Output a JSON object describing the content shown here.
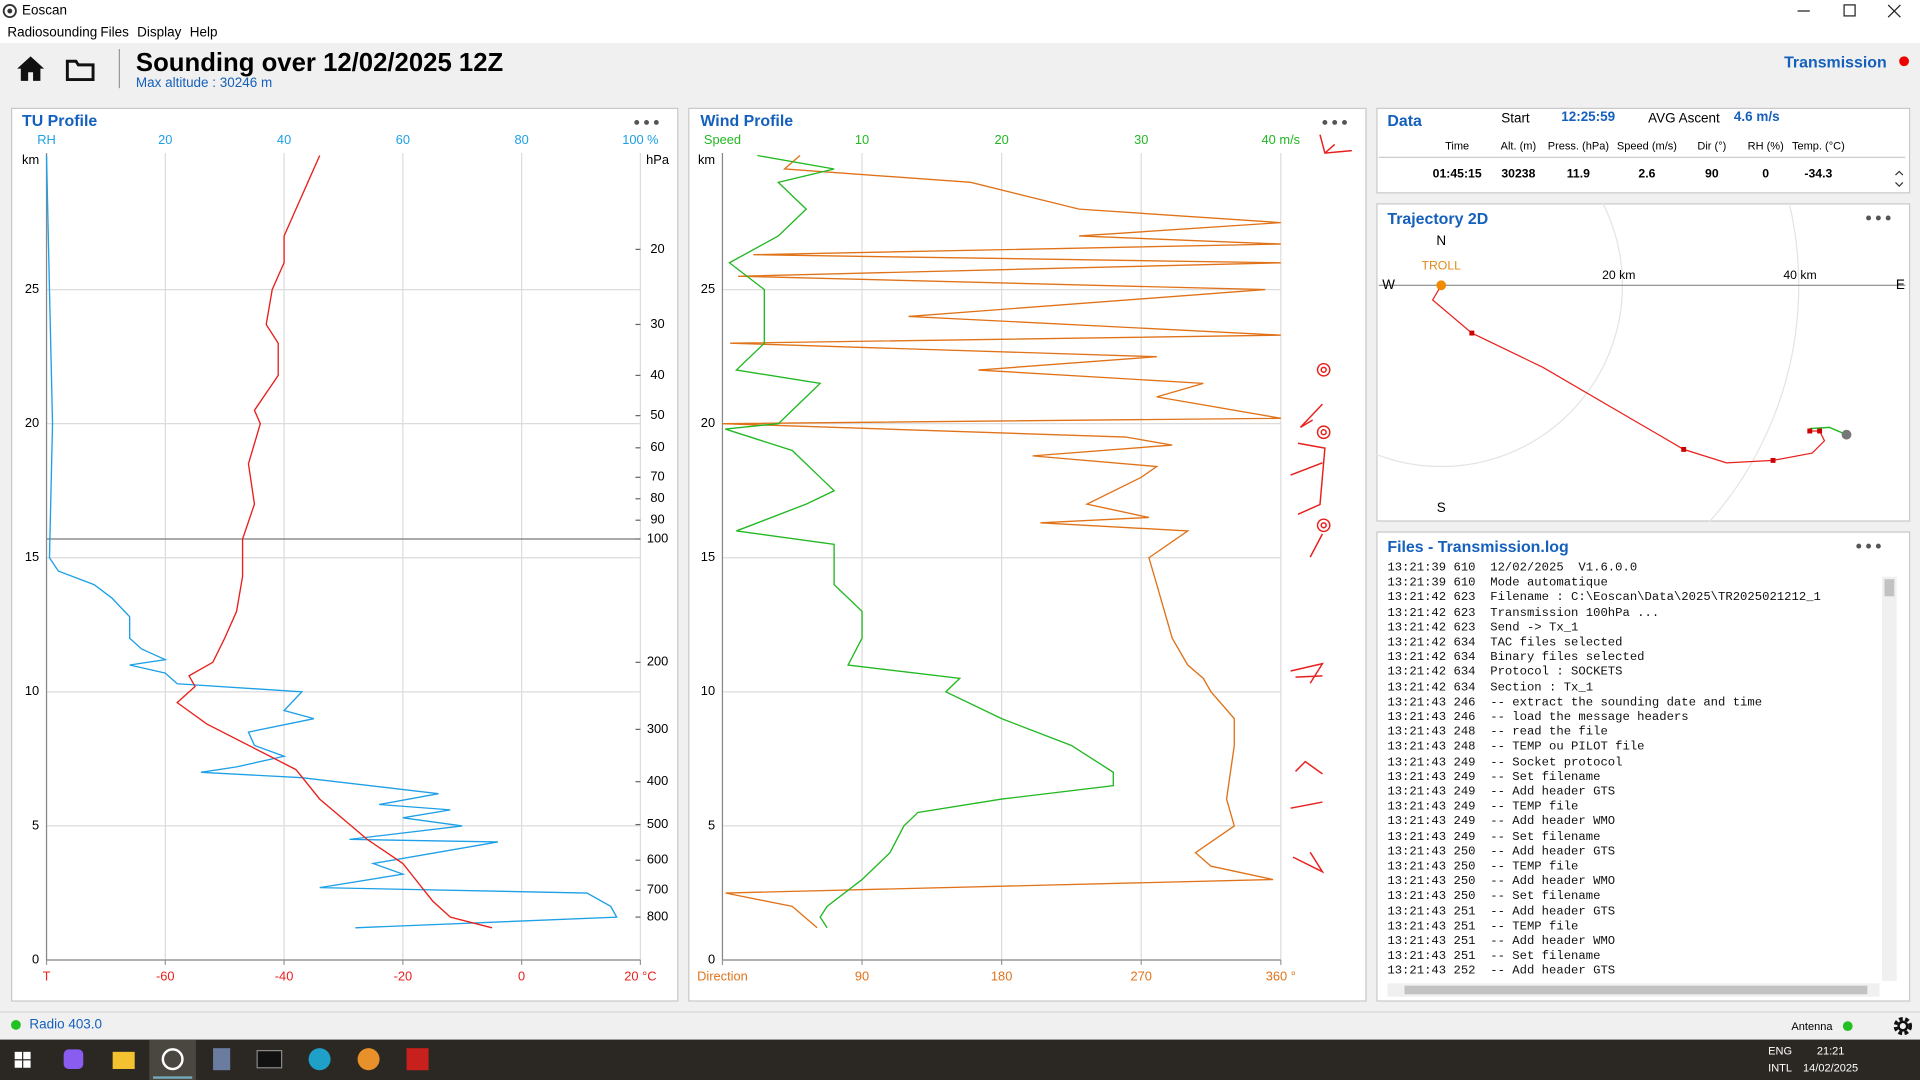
{
  "window": {
    "title": "Eoscan",
    "menu": [
      "Radiosounding",
      "Files",
      "Display",
      "Help"
    ]
  },
  "header": {
    "title": "Sounding over 12/02/2025 12Z",
    "subtitle": "Max altitude : 30246 m",
    "status": "Transmission"
  },
  "tu_profile": {
    "title": "TU Profile",
    "altitude_label": "km",
    "altitude_lim": [
      0,
      30
    ],
    "altitude_ticks": [
      0,
      5,
      10,
      15,
      20,
      25
    ],
    "rh_axis": {
      "color": "#1ea0e6",
      "lim": [
        0,
        100
      ],
      "ticks": [
        {
          "value": 0,
          "label": "RH"
        },
        20,
        40,
        60,
        80,
        {
          "value": 100,
          "label": "100 %"
        }
      ]
    },
    "t_axis": {
      "color": "#e8201c",
      "lim": [
        -80,
        20
      ],
      "ticks": [
        {
          "value": -80,
          "label": "T"
        },
        -60,
        -40,
        -20,
        0,
        {
          "value": 20,
          "label": "20 °C"
        }
      ]
    },
    "pressure_label": "hPa",
    "pressure_ticks": [
      20,
      30,
      40,
      50,
      60,
      70,
      80,
      90,
      100,
      200,
      300,
      400,
      500,
      600,
      700,
      800
    ],
    "pressure_tick_altitudes": [
      26.5,
      23.7,
      21.8,
      20.3,
      19.1,
      18.0,
      17.2,
      16.4,
      15.7,
      11.1,
      8.6,
      6.65,
      5.05,
      3.72,
      2.6,
      1.6
    ],
    "tropopause_altitude": 15.7,
    "temperature": {
      "color": "#e8201c",
      "altitude": [
        1.2,
        1.6,
        2.2,
        3.6,
        4.5,
        6.0,
        7.1,
        8.8,
        9.6,
        10.2,
        10.6,
        11.1,
        12,
        13,
        14.3,
        15.7,
        17,
        18.5,
        20,
        20.5,
        21.8,
        23,
        23.7,
        25,
        26,
        27,
        28,
        29,
        30
      ],
      "values": [
        -5,
        -12,
        -15,
        -20,
        -26,
        -34,
        -38,
        -53,
        -58,
        -55,
        -56,
        -52,
        -50,
        -48,
        -47,
        -47,
        -45,
        -46,
        -44,
        -45,
        -41,
        -41,
        -43,
        -42,
        -40,
        -40,
        -38,
        -36,
        -34
      ]
    },
    "humidity": {
      "color": "#1ea0e6",
      "altitude": [
        1.2,
        1.6,
        2.0,
        2.5,
        2.7,
        3.2,
        3.6,
        4.4,
        4.5,
        5.0,
        5.3,
        5.6,
        5.8,
        6.2,
        6.8,
        7.0,
        7.2,
        7.6,
        8.0,
        8.5,
        9.0,
        9.3,
        10.0,
        10.3,
        10.7,
        11,
        11.2,
        11.6,
        12,
        12.8,
        13.5,
        14,
        14.5,
        15,
        20,
        25,
        30
      ],
      "values": [
        52,
        96,
        95,
        91,
        46,
        60,
        55,
        76,
        51,
        70,
        60,
        68,
        56,
        66,
        43,
        26,
        32,
        40,
        35,
        34,
        45,
        40,
        43,
        22,
        20,
        14,
        20,
        16,
        14,
        14,
        11,
        8,
        2,
        0.5,
        1,
        0.5,
        0
      ]
    }
  },
  "wind_profile": {
    "title": "Wind Profile",
    "altitude_label": "km",
    "altitude_lim": [
      0,
      30
    ],
    "altitude_ticks": [
      0,
      5,
      10,
      15,
      20,
      25
    ],
    "speed_axis": {
      "color": "#22b822",
      "lim": [
        0,
        40
      ],
      "ticks": [
        {
          "value": 0,
          "label": "Speed"
        },
        10,
        20,
        30,
        {
          "value": 40,
          "label": "40 m/s"
        }
      ]
    },
    "direction_axis": {
      "color": "#e0731a",
      "lim": [
        0,
        360
      ],
      "ticks": [
        {
          "value": 0,
          "label": "Direction"
        },
        90,
        180,
        270,
        {
          "value": 360,
          "label": "360 °"
        }
      ]
    },
    "speed": {
      "color": "#22b822",
      "altitude": [
        1.2,
        1.6,
        2,
        3,
        4,
        5,
        5.5,
        6,
        6.5,
        7,
        8,
        9,
        10,
        10.5,
        11,
        12,
        13,
        14,
        15,
        15.5,
        16,
        17,
        17.5,
        18,
        19,
        19.8,
        20,
        21,
        21.5,
        22,
        23,
        24,
        25,
        26,
        27,
        28,
        29,
        29.5,
        30
      ],
      "values": [
        7.5,
        7,
        7.5,
        10,
        12,
        13,
        14,
        20,
        28,
        28,
        25,
        20,
        16,
        17,
        9,
        10,
        10,
        8,
        8,
        8,
        1,
        6,
        8,
        7,
        5,
        0.2,
        4,
        6,
        7,
        1,
        3,
        3,
        3,
        0.5,
        4,
        6,
        4,
        8,
        2.5
      ]
    },
    "direction": {
      "color": "#e0731a",
      "altitude": [
        1.2,
        1.5,
        2,
        2.5,
        3,
        3.5,
        4,
        5,
        6,
        8,
        9,
        10,
        10.5,
        11,
        12,
        13,
        14,
        15,
        16,
        16.3,
        16.5,
        17,
        18,
        18.4,
        18.8,
        19.2,
        19.5,
        20,
        20.2,
        21,
        21.5,
        22,
        22.5,
        23,
        23.3,
        24,
        25,
        25.5,
        26,
        26.3,
        26.7,
        27,
        27.5,
        28,
        29,
        29.5,
        30
      ],
      "values": [
        61,
        55,
        45,
        2,
        355,
        315,
        305,
        330,
        325,
        330,
        330,
        315,
        310,
        300,
        290,
        285,
        280,
        275,
        300,
        205,
        275,
        235,
        270,
        280,
        200,
        290,
        260,
        0,
        360,
        280,
        310,
        165,
        280,
        5,
        360,
        120,
        350,
        10,
        360,
        20,
        360,
        230,
        360,
        230,
        160,
        40,
        50
      ]
    }
  },
  "data_panel": {
    "title": "Data",
    "start_label": "Start",
    "start": "12:25:59",
    "ascent_label": "AVG Ascent",
    "ascent": "4.6 m/s",
    "columns": [
      "Time",
      "Alt. (m)",
      "Press. (hPa)",
      "Speed (m/s)",
      "Dir (°)",
      "RH (%)",
      "Temp. (°C)"
    ],
    "row": [
      "01:45:15",
      "30238",
      "11.9",
      "2.6",
      "90",
      "0",
      "-34.3"
    ]
  },
  "trajectory": {
    "title": "Trajectory 2D",
    "north": "N",
    "south": "S",
    "west": "W",
    "east": "E",
    "station": "TROLL",
    "ring_1": "20 km",
    "ring_2": "40 km"
  },
  "log": {
    "title": "Files - Transmission.log",
    "lines": [
      "13:21:39 610  12/02/2025  V1.6.0.0",
      "13:21:39 610  Mode automatique",
      "13:21:42 623  Filename : C:\\Eoscan\\Data\\2025\\TR2025021212_1",
      "13:21:42 623  Transmission 100hPa ...",
      "13:21:42 623  Send -> Tx_1",
      "13:21:42 634  TAC files selected",
      "13:21:42 634  Binary files selected",
      "13:21:42 634  Protocol : SOCKETS",
      "13:21:42 634  Section : Tx_1",
      "13:21:43 246  -- extract the sounding date and time",
      "13:21:43 246  -- load the message headers",
      "13:21:43 248  -- read the file",
      "13:21:43 248  -- TEMP ou PILOT file",
      "13:21:43 249  -- Socket protocol",
      "13:21:43 249  -- Set filename",
      "13:21:43 249  -- Add header GTS",
      "13:21:43 249  -- TEMP file",
      "13:21:43 249  -- Add header WMO",
      "13:21:43 249  -- Set filename",
      "13:21:43 250  -- Add header GTS",
      "13:21:43 250  -- TEMP file",
      "13:21:43 250  -- Add header WMO",
      "13:21:43 250  -- Set filename",
      "13:21:43 251  -- Add header GTS",
      "13:21:43 251  -- TEMP file",
      "13:21:43 251  -- Add header WMO",
      "13:21:43 251  -- Set filename",
      "13:21:43 252  -- Add header GTS"
    ]
  },
  "status_bar": {
    "radio": "Radio 403.0",
    "antenna": "Antenna"
  },
  "taskbar": {
    "language": "ENG",
    "layout": "INTL",
    "time": "21:21",
    "date": "14/02/2025"
  }
}
